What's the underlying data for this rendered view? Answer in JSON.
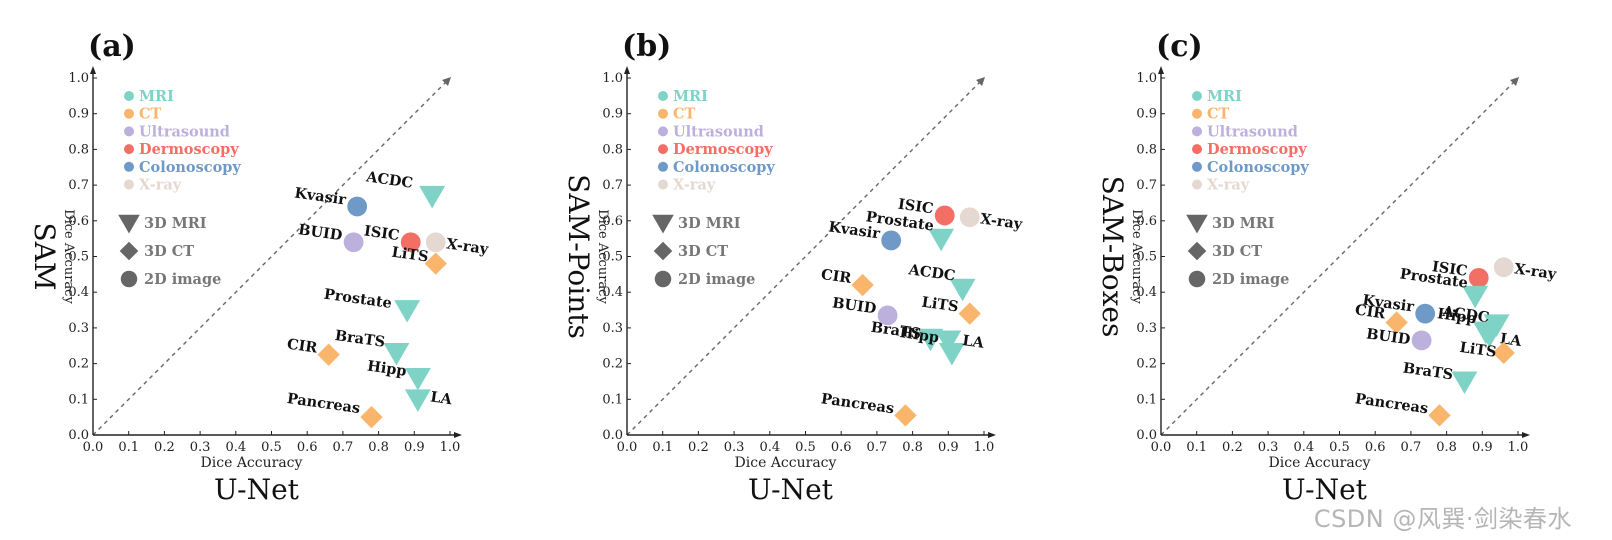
{
  "colors": {
    "MRI": "#7fd3c6",
    "CT": "#f9b56b",
    "Ultrasound": "#bbb1dc",
    "Dermoscopy": "#f36f65",
    "Colonoscopy": "#6f9ac8",
    "X-ray": "#e4d8d1",
    "axis": "#222222",
    "diagonal": "#666666",
    "shape_legend": "#666666"
  },
  "legend": {
    "modalities": [
      "MRI",
      "CT",
      "Ultrasound",
      "Dermoscopy",
      "Colonoscopy",
      "X-ray"
    ],
    "shapes": [
      {
        "label": "3D MRI",
        "shape": "triangle"
      },
      {
        "label": "3D CT",
        "shape": "diamond"
      },
      {
        "label": "2D image",
        "shape": "circle"
      }
    ]
  },
  "watermark": "CSDN @风巽·剑染春水",
  "chart_data": [
    {
      "type": "scatter",
      "panel_label": "(a)",
      "xlabel": "Dice Accuracy",
      "xtitle": "U-Net",
      "ylabel": "Dice Accuracy",
      "ytitle": "SAM",
      "xlim": [
        0,
        1
      ],
      "ylim": [
        0,
        1
      ],
      "xticks": [
        "0.0",
        "0.1",
        "0.2",
        "0.3",
        "0.4",
        "0.5",
        "0.6",
        "0.7",
        "0.8",
        "0.9",
        "1.0"
      ],
      "yticks": [
        "0.0",
        "0.1",
        "0.2",
        "0.3",
        "0.4",
        "0.5",
        "0.6",
        "0.7",
        "0.8",
        "0.9",
        "1.0"
      ],
      "points": [
        {
          "name": "ACDC",
          "x": 0.95,
          "y": 0.67,
          "modality": "MRI",
          "shape": "triangle"
        },
        {
          "name": "Kvasir",
          "x": 0.74,
          "y": 0.64,
          "modality": "Colonoscopy",
          "shape": "circle"
        },
        {
          "name": "BUID",
          "x": 0.73,
          "y": 0.54,
          "modality": "Ultrasound",
          "shape": "circle"
        },
        {
          "name": "ISIC",
          "x": 0.89,
          "y": 0.54,
          "modality": "Dermoscopy",
          "shape": "circle"
        },
        {
          "name": "X-ray",
          "x": 0.96,
          "y": 0.54,
          "modality": "X-ray",
          "shape": "circle"
        },
        {
          "name": "LiTS",
          "x": 0.96,
          "y": 0.48,
          "modality": "CT",
          "shape": "diamond"
        },
        {
          "name": "Prostate",
          "x": 0.88,
          "y": 0.35,
          "modality": "MRI",
          "shape": "triangle"
        },
        {
          "name": "BraTS",
          "x": 0.85,
          "y": 0.23,
          "modality": "MRI",
          "shape": "triangle"
        },
        {
          "name": "CIR",
          "x": 0.66,
          "y": 0.225,
          "modality": "CT",
          "shape": "diamond"
        },
        {
          "name": "Hipp",
          "x": 0.91,
          "y": 0.16,
          "modality": "MRI",
          "shape": "triangle"
        },
        {
          "name": "LA",
          "x": 0.91,
          "y": 0.1,
          "modality": "MRI",
          "shape": "triangle"
        },
        {
          "name": "Pancreas",
          "x": 0.78,
          "y": 0.05,
          "modality": "CT",
          "shape": "diamond"
        }
      ]
    },
    {
      "type": "scatter",
      "panel_label": "(b)",
      "xlabel": "Dice Accuracy",
      "xtitle": "U-Net",
      "ylabel": "Dice Accuracy",
      "ytitle": "SAM-Points",
      "xlim": [
        0,
        1
      ],
      "ylim": [
        0,
        1
      ],
      "xticks": [
        "0.0",
        "0.1",
        "0.2",
        "0.3",
        "0.4",
        "0.5",
        "0.6",
        "0.7",
        "0.8",
        "0.9",
        "1.0"
      ],
      "yticks": [
        "0.0",
        "0.1",
        "0.2",
        "0.3",
        "0.4",
        "0.5",
        "0.6",
        "0.7",
        "0.8",
        "0.9",
        "1.0"
      ],
      "points": [
        {
          "name": "ISIC",
          "x": 0.89,
          "y": 0.615,
          "modality": "Dermoscopy",
          "shape": "circle"
        },
        {
          "name": "X-ray",
          "x": 0.96,
          "y": 0.61,
          "modality": "X-ray",
          "shape": "circle"
        },
        {
          "name": "Prostate",
          "x": 0.88,
          "y": 0.55,
          "modality": "MRI",
          "shape": "triangle"
        },
        {
          "name": "Kvasir",
          "x": 0.74,
          "y": 0.545,
          "modality": "Colonoscopy",
          "shape": "circle"
        },
        {
          "name": "CIR",
          "x": 0.66,
          "y": 0.42,
          "modality": "CT",
          "shape": "diamond"
        },
        {
          "name": "ACDC",
          "x": 0.94,
          "y": 0.41,
          "modality": "MRI",
          "shape": "triangle"
        },
        {
          "name": "LiTS",
          "x": 0.96,
          "y": 0.34,
          "modality": "CT",
          "shape": "diamond"
        },
        {
          "name": "BUID",
          "x": 0.73,
          "y": 0.335,
          "modality": "Ultrasound",
          "shape": "circle"
        },
        {
          "name": "BraTS",
          "x": 0.85,
          "y": 0.27,
          "modality": "MRI",
          "shape": "triangle"
        },
        {
          "name": "Hipp",
          "x": 0.9,
          "y": 0.265,
          "modality": "MRI",
          "shape": "triangle"
        },
        {
          "name": "LA",
          "x": 0.91,
          "y": 0.23,
          "modality": "MRI",
          "shape": "triangle"
        },
        {
          "name": "Pancreas",
          "x": 0.78,
          "y": 0.055,
          "modality": "CT",
          "shape": "diamond"
        }
      ]
    },
    {
      "type": "scatter",
      "panel_label": "(c)",
      "xlabel": "Dice Accuracy",
      "xtitle": "U-Net",
      "ylabel": "Dice Accuracy",
      "ytitle": "SAM-Boxes",
      "xlim": [
        0,
        1
      ],
      "ylim": [
        0,
        1
      ],
      "xticks": [
        "0.0",
        "0.1",
        "0.2",
        "0.3",
        "0.4",
        "0.5",
        "0.6",
        "0.7",
        "0.8",
        "0.9",
        "1.0"
      ],
      "yticks": [
        "0.0",
        "0.1",
        "0.2",
        "0.3",
        "0.4",
        "0.5",
        "0.6",
        "0.7",
        "0.8",
        "0.9",
        "1.0"
      ],
      "points": [
        {
          "name": "X-ray",
          "x": 0.96,
          "y": 0.47,
          "modality": "X-ray",
          "shape": "circle"
        },
        {
          "name": "ISIC",
          "x": 0.89,
          "y": 0.44,
          "modality": "Dermoscopy",
          "shape": "circle"
        },
        {
          "name": "Prostate",
          "x": 0.88,
          "y": 0.39,
          "modality": "MRI",
          "shape": "triangle"
        },
        {
          "name": "Kvasir",
          "x": 0.74,
          "y": 0.34,
          "modality": "Colonoscopy",
          "shape": "circle"
        },
        {
          "name": "ACDC",
          "x": 0.94,
          "y": 0.31,
          "modality": "MRI",
          "shape": "triangle"
        },
        {
          "name": "CIR",
          "x": 0.66,
          "y": 0.315,
          "modality": "CT",
          "shape": "diamond"
        },
        {
          "name": "Hipp",
          "x": 0.91,
          "y": 0.29,
          "modality": "MRI",
          "shape": "triangle"
        },
        {
          "name": "LA",
          "x": 0.92,
          "y": 0.28,
          "modality": "MRI",
          "shape": "triangle"
        },
        {
          "name": "BUID",
          "x": 0.73,
          "y": 0.265,
          "modality": "Ultrasound",
          "shape": "circle"
        },
        {
          "name": "LiTS",
          "x": 0.96,
          "y": 0.23,
          "modality": "CT",
          "shape": "diamond"
        },
        {
          "name": "BraTS",
          "x": 0.85,
          "y": 0.15,
          "modality": "MRI",
          "shape": "triangle"
        },
        {
          "name": "Pancreas",
          "x": 0.78,
          "y": 0.055,
          "modality": "CT",
          "shape": "diamond"
        }
      ]
    }
  ]
}
